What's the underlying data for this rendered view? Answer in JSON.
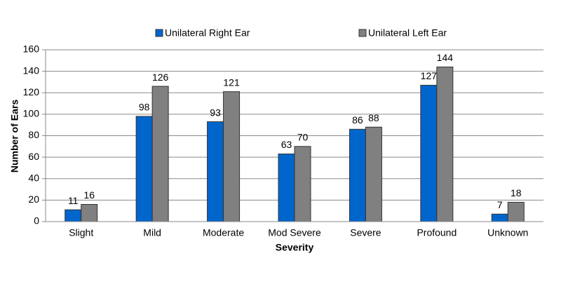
{
  "chart_data": {
    "type": "bar",
    "x_label": "Severity",
    "y_label": "Number of Ears",
    "categories": [
      "Slight",
      "Mild",
      "Moderate",
      "Mod Severe",
      "Severe",
      "Profound",
      "Unknown"
    ],
    "series": [
      {
        "name": "Unilateral Right Ear",
        "color": "#0066cc",
        "values": [
          11,
          98,
          93,
          63,
          86,
          127,
          7
        ]
      },
      {
        "name": "Unilateral Left Ear",
        "color": "#808080",
        "values": [
          16,
          126,
          121,
          70,
          88,
          144,
          18
        ]
      }
    ],
    "ylim": [
      0,
      160
    ],
    "yticks": [
      0,
      20,
      40,
      60,
      80,
      100,
      120,
      140,
      160
    ],
    "grid": true,
    "legend": "top"
  }
}
